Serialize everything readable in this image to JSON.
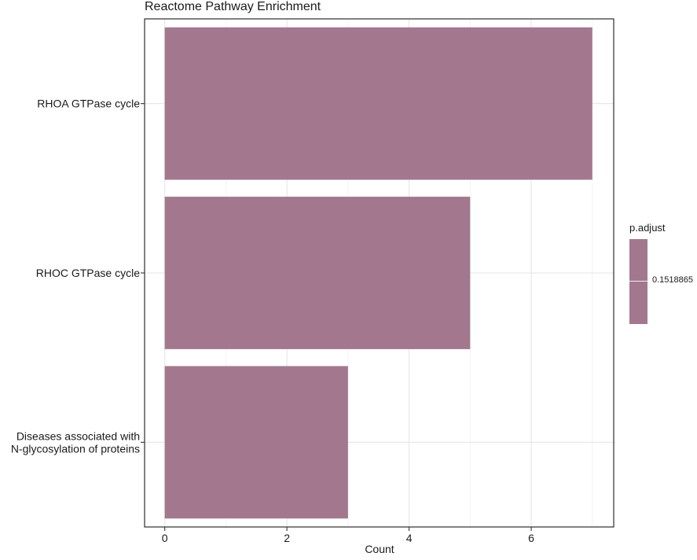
{
  "chart_data": {
    "type": "bar",
    "orientation": "horizontal",
    "title": "Reactome Pathway Enrichment",
    "xlabel": "Count",
    "ylabel": "",
    "categories": [
      [
        "RHOA GTPase cycle"
      ],
      [
        "RHOC GTPase cycle"
      ],
      [
        "Diseases associated with",
        "N-glycosylation of proteins"
      ]
    ],
    "values": [
      7,
      5,
      3
    ],
    "xlim": [
      -0.33,
      7.35
    ],
    "x_ticks": [
      0,
      2,
      4,
      6
    ],
    "grid": true,
    "bar_color": "#a3788e",
    "legend": {
      "title": "p.adjust",
      "label": "0.1518865",
      "placement": "right",
      "color": "#a3788e"
    }
  }
}
